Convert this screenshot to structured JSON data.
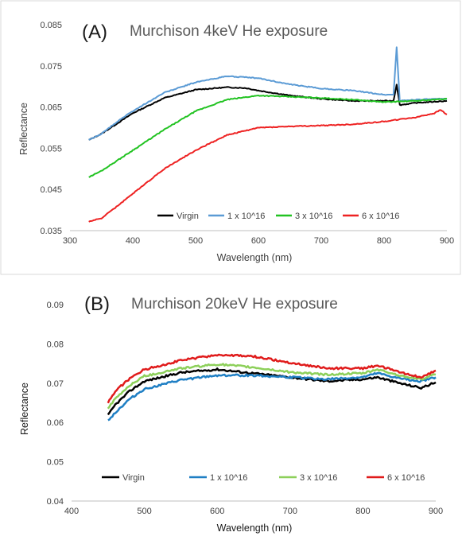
{
  "chart_data": [
    {
      "type": "line",
      "panel_label": "(A)",
      "title": "Murchison 4keV He exposure",
      "xlabel": "Wavelength (nm)",
      "ylabel": "Reflectance",
      "xlim": [
        300,
        900
      ],
      "ylim": [
        0.035,
        0.085
      ],
      "xticks": [
        "300",
        "400",
        "500",
        "600",
        "700",
        "800",
        "900"
      ],
      "yticks": [
        "0.035",
        "0.045",
        "0.055",
        "0.065",
        "0.075",
        "0.085"
      ],
      "grid": false,
      "legend_position": "bottom-right, inside plot",
      "series": [
        {
          "name": "Virgin",
          "color": "#000000",
          "x": [
            330,
            350,
            380,
            400,
            450,
            500,
            550,
            580,
            600,
            650,
            700,
            750,
            800,
            815,
            820,
            825,
            850,
            900
          ],
          "y": [
            0.057,
            0.0585,
            0.0615,
            0.0635,
            0.0672,
            0.0692,
            0.0698,
            0.0696,
            0.069,
            0.0678,
            0.067,
            0.0665,
            0.0665,
            0.0665,
            0.0705,
            0.0655,
            0.066,
            0.0665
          ]
        },
        {
          "name": "1 x 10^16",
          "color": "#5b9bd5",
          "x": [
            330,
            350,
            380,
            400,
            450,
            500,
            550,
            600,
            650,
            700,
            750,
            800,
            815,
            820,
            825,
            850,
            900
          ],
          "y": [
            0.057,
            0.0585,
            0.062,
            0.064,
            0.0685,
            0.071,
            0.0725,
            0.072,
            0.0705,
            0.0695,
            0.069,
            0.068,
            0.068,
            0.0795,
            0.0665,
            0.0668,
            0.067
          ]
        },
        {
          "name": "3 x 10^16",
          "color": "#22c322",
          "x": [
            330,
            350,
            400,
            450,
            500,
            550,
            600,
            650,
            700,
            750,
            800,
            850,
            900
          ],
          "y": [
            0.048,
            0.0495,
            0.0545,
            0.0595,
            0.064,
            0.0668,
            0.0678,
            0.0675,
            0.0672,
            0.0668,
            0.0662,
            0.0665,
            0.067
          ]
        },
        {
          "name": "6 x 10^16",
          "color": "#ee2222",
          "x": [
            330,
            350,
            380,
            400,
            450,
            500,
            550,
            600,
            650,
            700,
            750,
            800,
            850,
            880,
            890,
            900
          ],
          "y": [
            0.0372,
            0.038,
            0.0415,
            0.044,
            0.05,
            0.0545,
            0.0582,
            0.06,
            0.0603,
            0.0605,
            0.0608,
            0.0615,
            0.0625,
            0.0635,
            0.0643,
            0.0632
          ]
        }
      ],
      "legend": [
        {
          "label": "Virgin",
          "color": "#000000"
        },
        {
          "label": "1 x 10^16",
          "color": "#5b9bd5"
        },
        {
          "label": "3 x 10^16",
          "color": "#22c322"
        },
        {
          "label": "6 x 10^16",
          "color": "#ee2222"
        }
      ]
    },
    {
      "type": "line",
      "panel_label": "(B)",
      "title": "Murchison 20keV He exposure",
      "xlabel": "Wavelength (nm)",
      "ylabel": "Reflectance",
      "xlim": [
        400,
        900
      ],
      "ylim": [
        0.04,
        0.09
      ],
      "xticks": [
        "400",
        "500",
        "600",
        "700",
        "800",
        "900"
      ],
      "yticks": [
        "0.04",
        "0.05",
        "0.06",
        "0.07",
        "0.08",
        "0.09"
      ],
      "grid": false,
      "legend_position": "bottom, inside plot",
      "series": [
        {
          "name": "Virgin",
          "color": "#000000",
          "x": [
            450,
            460,
            480,
            500,
            550,
            600,
            650,
            700,
            750,
            800,
            820,
            850,
            880,
            900
          ],
          "y": [
            0.0618,
            0.0645,
            0.068,
            0.0705,
            0.0727,
            0.0735,
            0.0725,
            0.0715,
            0.0705,
            0.071,
            0.0715,
            0.07,
            0.0688,
            0.0702
          ]
        },
        {
          "name": "1 x 10^16",
          "color": "#1f7fc4",
          "x": [
            450,
            460,
            480,
            500,
            550,
            600,
            650,
            700,
            750,
            800,
            820,
            850,
            880,
            900
          ],
          "y": [
            0.0605,
            0.0625,
            0.066,
            0.0685,
            0.0708,
            0.072,
            0.072,
            0.0715,
            0.071,
            0.0715,
            0.0725,
            0.0712,
            0.0705,
            0.0715
          ]
        },
        {
          "name": "3 x 10^16",
          "color": "#8dd05a",
          "x": [
            450,
            460,
            480,
            500,
            550,
            600,
            650,
            700,
            750,
            800,
            820,
            850,
            880,
            900
          ],
          "y": [
            0.0635,
            0.066,
            0.0695,
            0.0718,
            0.0738,
            0.0748,
            0.074,
            0.0728,
            0.0722,
            0.0725,
            0.0735,
            0.072,
            0.071,
            0.0722
          ]
        },
        {
          "name": "6 x 10^16",
          "color": "#e01b1b",
          "x": [
            450,
            460,
            480,
            500,
            550,
            600,
            650,
            700,
            750,
            800,
            820,
            850,
            880,
            900
          ],
          "y": [
            0.065,
            0.068,
            0.0712,
            0.0735,
            0.0758,
            0.0772,
            0.0768,
            0.0752,
            0.0738,
            0.0738,
            0.0745,
            0.0728,
            0.0715,
            0.0732
          ]
        }
      ],
      "legend": [
        {
          "label": "Virgin",
          "color": "#000000"
        },
        {
          "label": "1 x 10^16",
          "color": "#1f7fc4"
        },
        {
          "label": "3 x 10^16",
          "color": "#8dd05a"
        },
        {
          "label": "6 x 10^16",
          "color": "#e01b1b"
        }
      ]
    }
  ]
}
